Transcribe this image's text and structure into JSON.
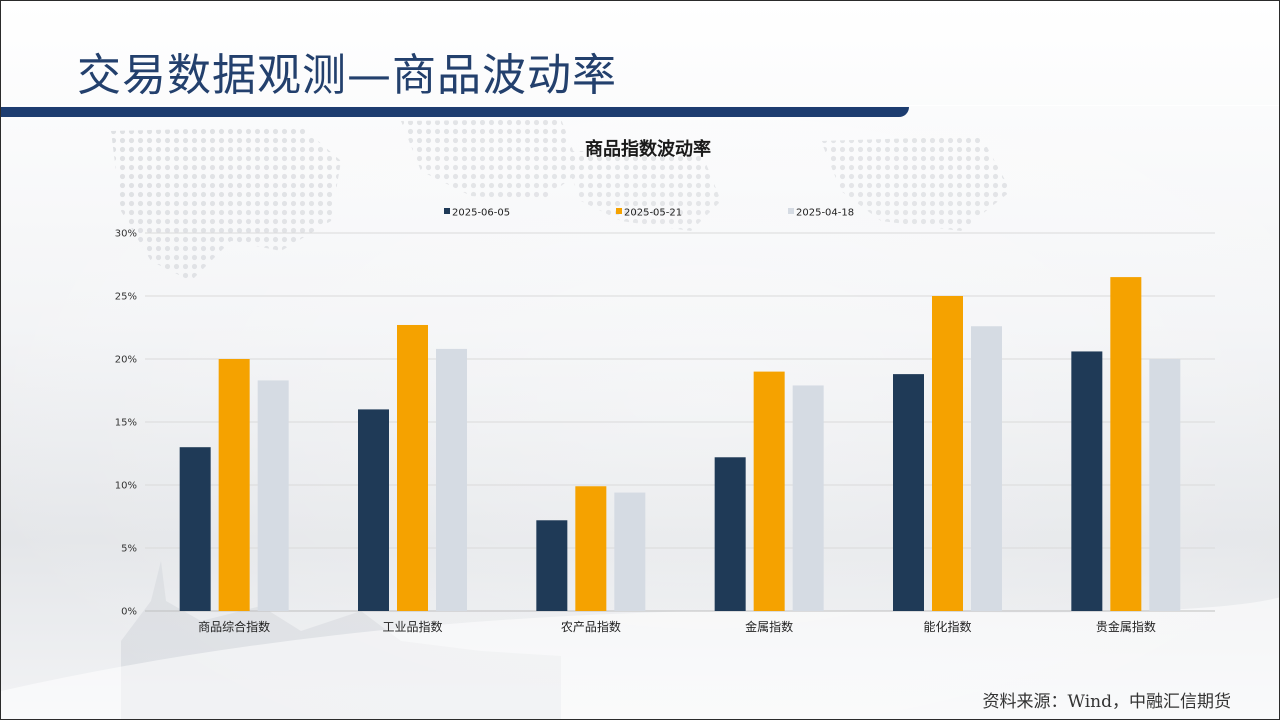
{
  "slide": {
    "title": "交易数据观测—商品波动率",
    "source": "资料来源：Wind，中融汇信期货"
  },
  "colors": {
    "title": "#23406d",
    "title_bar": "#1d3d70",
    "series": [
      "#1f3a57",
      "#f5a200",
      "#d5dbe3"
    ]
  },
  "chart_data": {
    "type": "bar",
    "title": "商品指数波动率",
    "xlabel": "",
    "ylabel": "",
    "ylim": [
      0,
      30
    ],
    "yticks": [
      "0%",
      "5%",
      "10%",
      "15%",
      "20%",
      "25%",
      "30%"
    ],
    "yticks_values": [
      0,
      5,
      10,
      15,
      20,
      25,
      30
    ],
    "grid": true,
    "legend_position": "top-center",
    "categories": [
      "商品综合指数",
      "工业品指数",
      "农产品指数",
      "金属指数",
      "能化指数",
      "贵金属指数"
    ],
    "series": [
      {
        "name": "2025-06-05",
        "values": [
          13.0,
          16.0,
          7.2,
          12.2,
          18.8,
          20.6
        ]
      },
      {
        "name": "2025-05-21",
        "values": [
          20.0,
          22.7,
          9.9,
          19.0,
          25.0,
          26.5
        ]
      },
      {
        "name": "2025-04-18",
        "values": [
          18.3,
          20.8,
          9.4,
          17.9,
          22.6,
          20.0
        ]
      }
    ]
  }
}
